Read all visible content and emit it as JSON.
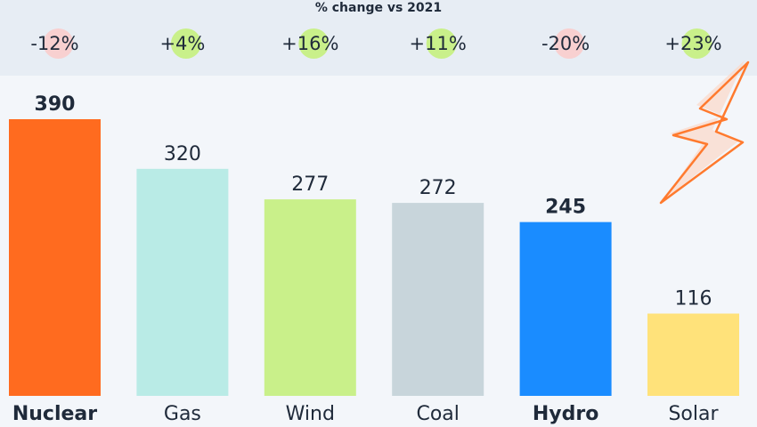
{
  "chart_data": {
    "type": "bar",
    "categories": [
      "Nuclear",
      "Gas",
      "Wind",
      "Coal",
      "Hydro",
      "Solar"
    ],
    "values": [
      390,
      320,
      277,
      272,
      245,
      116
    ],
    "colors": [
      "#ff6b1f",
      "#b9ebe6",
      "#c9f08a",
      "#c8d5db",
      "#1a8cff",
      "#ffe27a"
    ],
    "bold": [
      true,
      false,
      false,
      false,
      true,
      false
    ],
    "changes": {
      "title": "% change vs 2021",
      "values": [
        -12,
        4,
        16,
        11,
        -20,
        23
      ],
      "value_labels": [
        "-12%",
        "+4%",
        "+16%",
        "+11%",
        "-20%",
        "+23%"
      ],
      "positive_color": "#c9f08a",
      "negative_color": "#f8d0d0"
    }
  }
}
